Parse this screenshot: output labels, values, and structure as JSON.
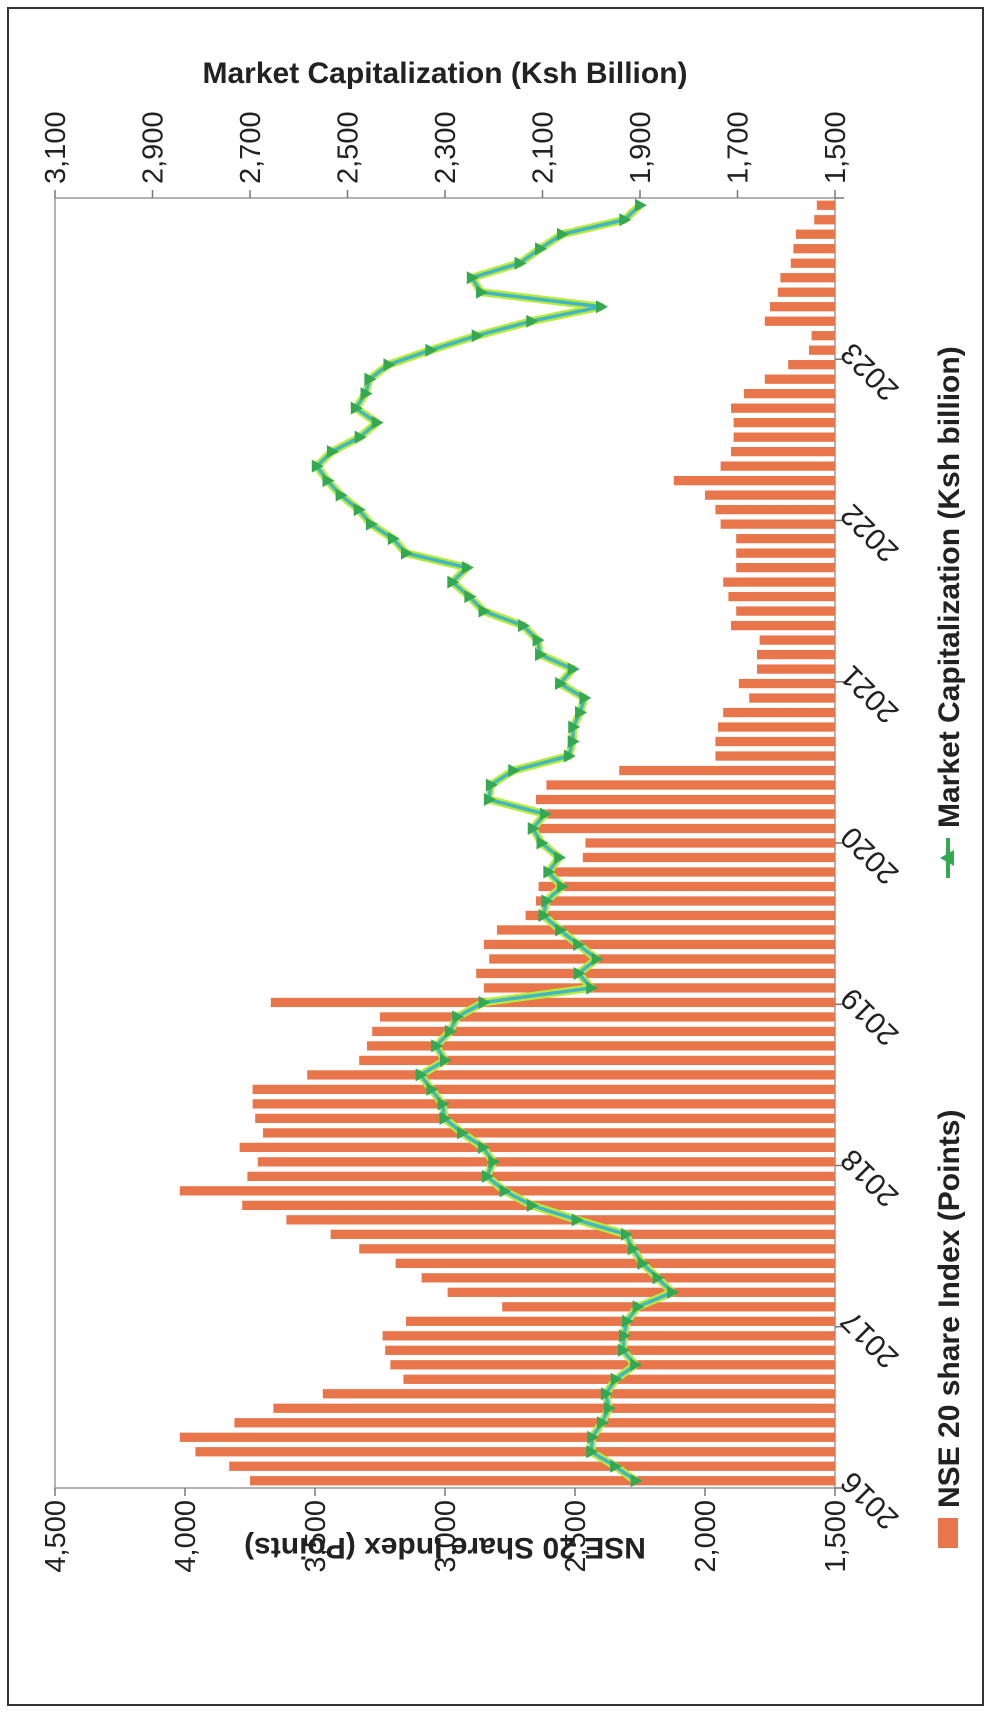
{
  "chart_data": {
    "type": "bar",
    "ylabel": "NSE 20 Share Index (Points)",
    "y2label": "Market Capitalization (Ksh Billion)",
    "ylim": [
      1500,
      4500
    ],
    "y2lim": [
      1500,
      3100
    ],
    "yticks": [
      "1,500",
      "2,000",
      "2,500",
      "3,000",
      "3,500",
      "4,000",
      "4,500"
    ],
    "y2ticks": [
      "1,500",
      "1,700",
      "1,900",
      "2,100",
      "2,300",
      "2,500",
      "2,700",
      "2,900",
      "3,100"
    ],
    "xticks": [
      "2016",
      "2017",
      "2018",
      "2019",
      "2020",
      "2021",
      "2022",
      "2023"
    ],
    "grid": false,
    "legend_position": "bottom",
    "series": [
      {
        "name": "NSE 20 share Index (Points)",
        "type": "bar",
        "color": "#e8764a",
        "values": [
          3750,
          3830,
          3960,
          4020,
          3810,
          3660,
          3470,
          3160,
          3210,
          3230,
          3240,
          3150,
          2780,
          2990,
          3090,
          3190,
          3330,
          3440,
          3610,
          3780,
          4020,
          3760,
          3720,
          3790,
          3700,
          3730,
          3740,
          3740,
          3530,
          3330,
          3300,
          3280,
          3250,
          3670,
          2850,
          2880,
          2830,
          2850,
          2800,
          2690,
          2650,
          2640,
          2580,
          2470,
          2460,
          2650,
          2640,
          2650,
          2610,
          2330,
          1960,
          1960,
          1950,
          1930,
          1830,
          1870,
          1800,
          1800,
          1790,
          1900,
          1880,
          1910,
          1930,
          1880,
          1880,
          1880,
          1940,
          1960,
          2000,
          2120,
          1940,
          1900,
          1890,
          1890,
          1900,
          1850,
          1770,
          1680,
          1600,
          1590,
          1770,
          1750,
          1720,
          1710,
          1670,
          1660,
          1650,
          1580,
          1570
        ]
      },
      {
        "name": "Market Capitalization (Ksh billion)",
        "type": "line",
        "color": "#34a853",
        "values": [
          1909,
          1951,
          2000,
          1998,
          1978,
          1964,
          1970,
          1950,
          1910,
          1935,
          1933,
          1927,
          1905,
          1834,
          1864,
          1895,
          1915,
          1929,
          2030,
          2122,
          2178,
          2214,
          2201,
          2222,
          2265,
          2301,
          2305,
          2328,
          2350,
          2300,
          2318,
          2290,
          2275,
          2221,
          2000,
          2026,
          1989,
          2027,
          2064,
          2098,
          2092,
          2060,
          2088,
          2066,
          2102,
          2120,
          2095,
          2210,
          2206,
          2160,
          2046,
          2038,
          2037,
          2023,
          2014,
          2064,
          2038,
          2105,
          2110,
          2140,
          2221,
          2250,
          2285,
          2255,
          2380,
          2407,
          2452,
          2477,
          2514,
          2541,
          2563,
          2532,
          2475,
          2440,
          2483,
          2463,
          2455,
          2416,
          2330,
          2235,
          2123,
          1980,
          2226,
          2245,
          2147,
          2105,
          2060,
          1932,
          1900
        ]
      }
    ]
  }
}
